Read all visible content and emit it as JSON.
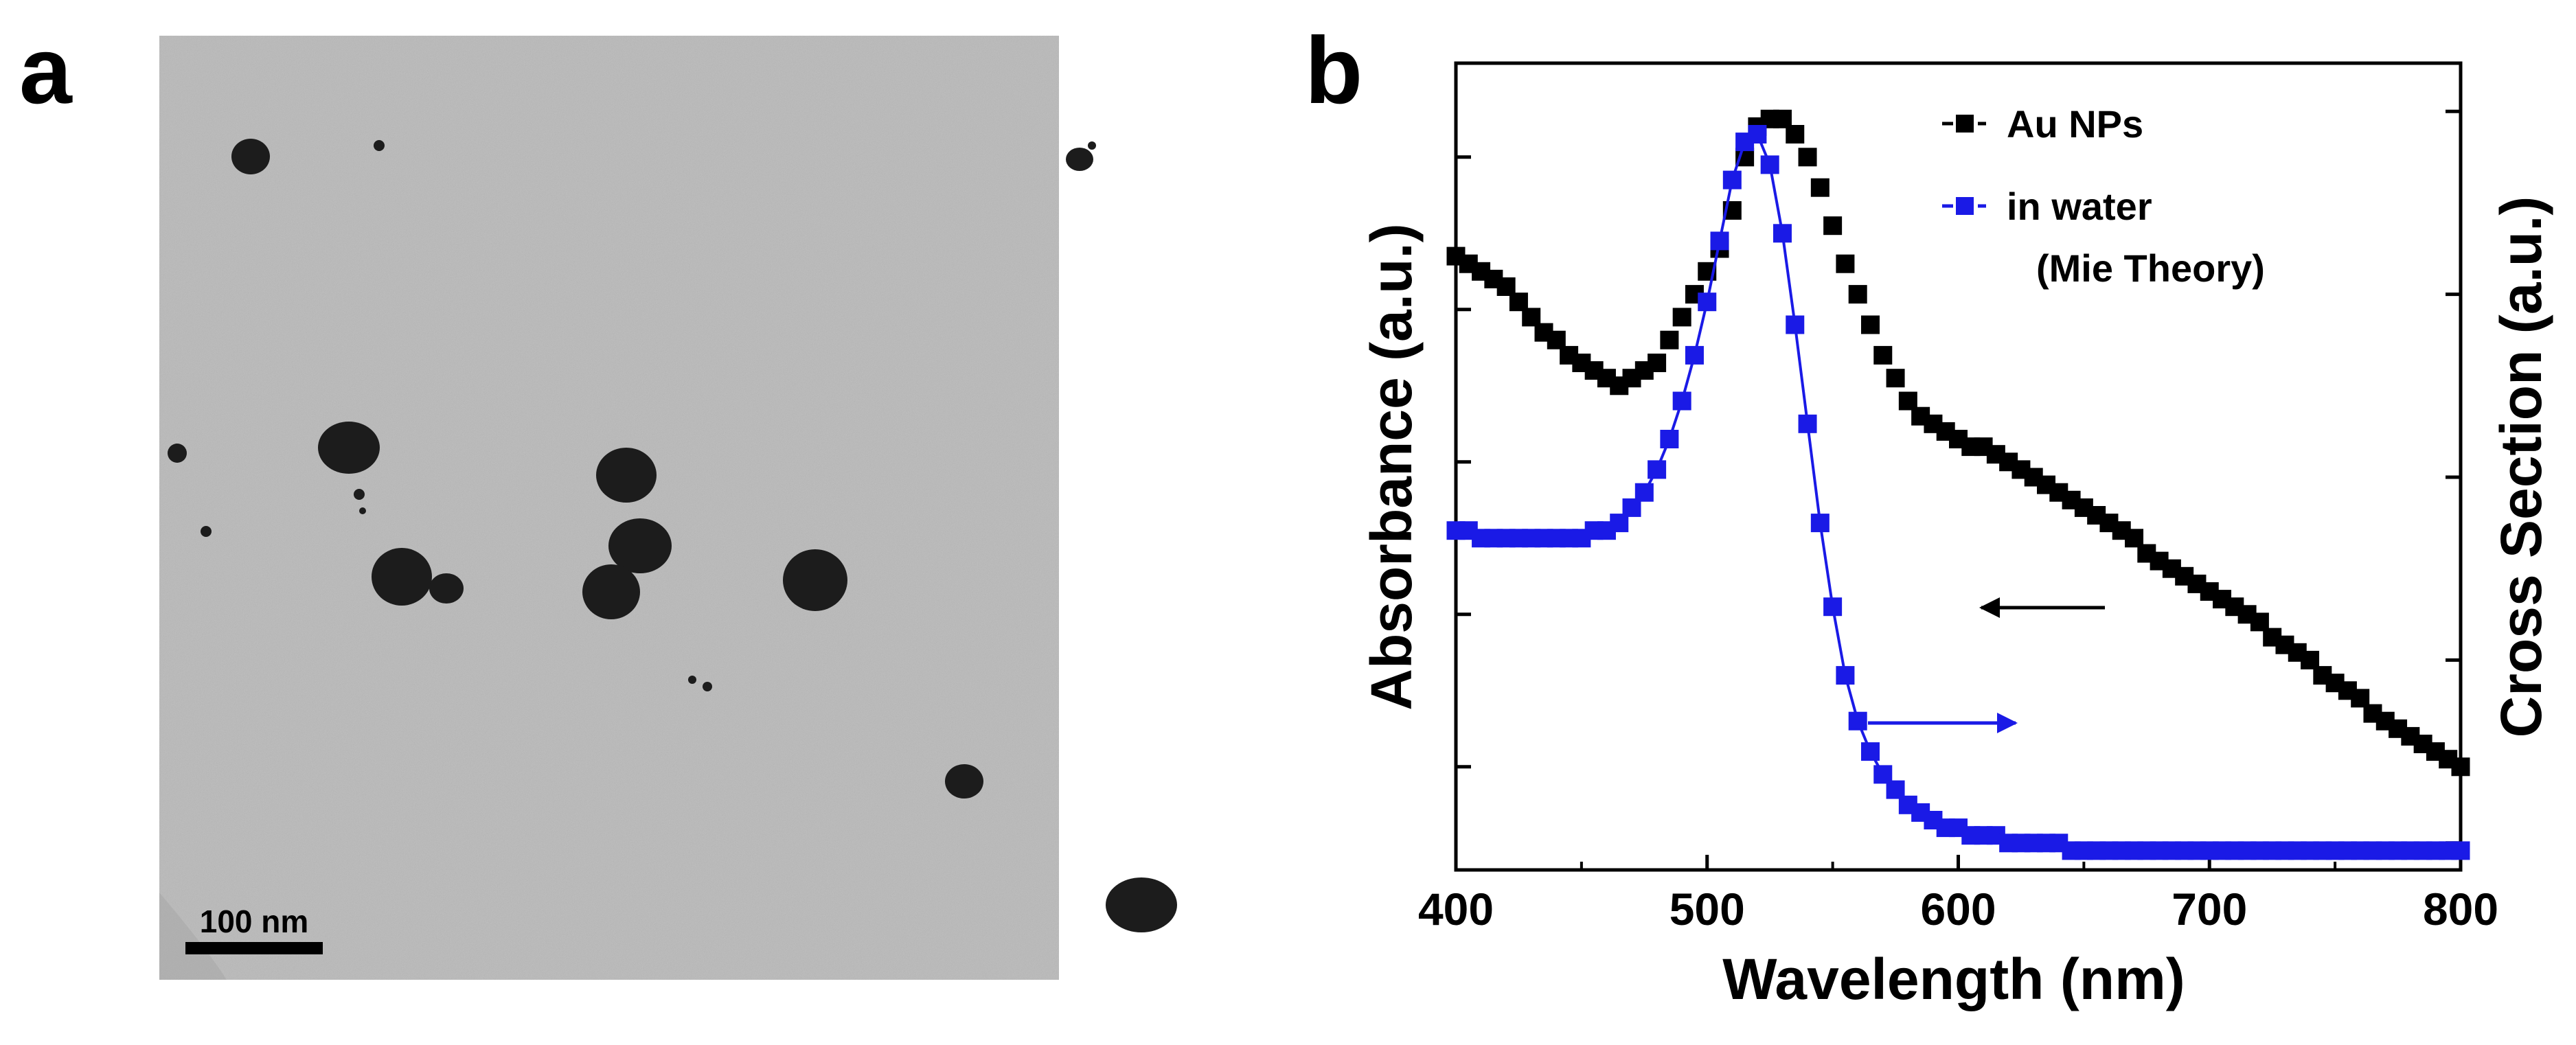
{
  "panel_a": {
    "label": "a",
    "scale_bar_label": "100 nm"
  },
  "panel_b": {
    "label": "b"
  },
  "colors": {
    "series_black": "#000000",
    "series_blue": "#1a1ae6",
    "tem_background": "#b9b9b9",
    "particle": "#1c1c1c"
  },
  "chart_data": {
    "type": "line",
    "xlabel": "Wavelength (nm)",
    "ylabel_left": "Absorbance (a.u.)",
    "ylabel_right": "Cross Section (a.u.)",
    "xlim": [
      400,
      800
    ],
    "ylim": [
      0,
      1
    ],
    "xticks": [
      "400",
      "500",
      "600",
      "700",
      "800"
    ],
    "legend": [
      {
        "name": "Au NPs",
        "marker": "square",
        "color": "#000000"
      },
      {
        "name": "in water",
        "marker": "square",
        "color": "#1a1ae6"
      },
      {
        "name": "(Mie Theory)"
      }
    ],
    "series": [
      {
        "name": "Au NPs",
        "axis": "left",
        "x": [
          400,
          405,
          410,
          415,
          420,
          425,
          430,
          435,
          440,
          445,
          450,
          455,
          460,
          465,
          470,
          475,
          480,
          485,
          490,
          495,
          500,
          505,
          510,
          515,
          520,
          525,
          530,
          535,
          540,
          545,
          550,
          555,
          560,
          565,
          570,
          575,
          580,
          585,
          590,
          595,
          600,
          605,
          610,
          615,
          620,
          625,
          630,
          635,
          640,
          645,
          650,
          655,
          660,
          665,
          670,
          675,
          680,
          685,
          690,
          695,
          700,
          705,
          710,
          715,
          720,
          725,
          730,
          735,
          740,
          745,
          750,
          755,
          760,
          765,
          770,
          775,
          780,
          785,
          790,
          795,
          800
        ],
        "values": [
          0.79,
          0.78,
          0.77,
          0.76,
          0.75,
          0.73,
          0.71,
          0.69,
          0.68,
          0.66,
          0.65,
          0.64,
          0.63,
          0.62,
          0.63,
          0.64,
          0.65,
          0.68,
          0.71,
          0.74,
          0.77,
          0.8,
          0.85,
          0.92,
          0.96,
          0.97,
          0.97,
          0.95,
          0.92,
          0.88,
          0.83,
          0.78,
          0.74,
          0.7,
          0.66,
          0.63,
          0.6,
          0.58,
          0.57,
          0.56,
          0.55,
          0.54,
          0.54,
          0.53,
          0.52,
          0.51,
          0.5,
          0.49,
          0.48,
          0.47,
          0.46,
          0.45,
          0.44,
          0.43,
          0.42,
          0.4,
          0.39,
          0.38,
          0.37,
          0.36,
          0.35,
          0.34,
          0.33,
          0.32,
          0.31,
          0.29,
          0.28,
          0.27,
          0.26,
          0.24,
          0.23,
          0.22,
          0.21,
          0.19,
          0.18,
          0.17,
          0.16,
          0.15,
          0.14,
          0.13,
          0.12
        ]
      },
      {
        "name": "in water (Mie Theory)",
        "axis": "right",
        "x": [
          400,
          405,
          410,
          415,
          420,
          425,
          430,
          435,
          440,
          445,
          450,
          455,
          460,
          465,
          470,
          475,
          480,
          485,
          490,
          495,
          500,
          505,
          510,
          515,
          520,
          525,
          530,
          535,
          540,
          545,
          550,
          555,
          560,
          565,
          570,
          575,
          580,
          585,
          590,
          595,
          600,
          605,
          610,
          615,
          620,
          625,
          630,
          635,
          640,
          645,
          650,
          655,
          660,
          665,
          670,
          675,
          680,
          685,
          690,
          695,
          700,
          705,
          710,
          715,
          720,
          725,
          730,
          735,
          740,
          745,
          750,
          755,
          760,
          765,
          770,
          775,
          780,
          785,
          790,
          795,
          800
        ],
        "values": [
          0.43,
          0.43,
          0.42,
          0.42,
          0.42,
          0.42,
          0.42,
          0.42,
          0.42,
          0.42,
          0.42,
          0.43,
          0.43,
          0.44,
          0.46,
          0.48,
          0.51,
          0.55,
          0.6,
          0.66,
          0.73,
          0.81,
          0.89,
          0.94,
          0.95,
          0.91,
          0.82,
          0.7,
          0.57,
          0.44,
          0.33,
          0.24,
          0.18,
          0.14,
          0.11,
          0.09,
          0.07,
          0.06,
          0.05,
          0.04,
          0.04,
          0.03,
          0.03,
          0.03,
          0.02,
          0.02,
          0.02,
          0.02,
          0.02,
          0.01,
          0.01,
          0.01,
          0.01,
          0.01,
          0.01,
          0.01,
          0.01,
          0.01,
          0.01,
          0.01,
          0.01,
          0.01,
          0.01,
          0.01,
          0.01,
          0.01,
          0.01,
          0.01,
          0.01,
          0.01,
          0.01,
          0.01,
          0.01,
          0.01,
          0.01,
          0.01,
          0.01,
          0.01,
          0.01,
          0.01,
          0.01
        ]
      }
    ]
  }
}
